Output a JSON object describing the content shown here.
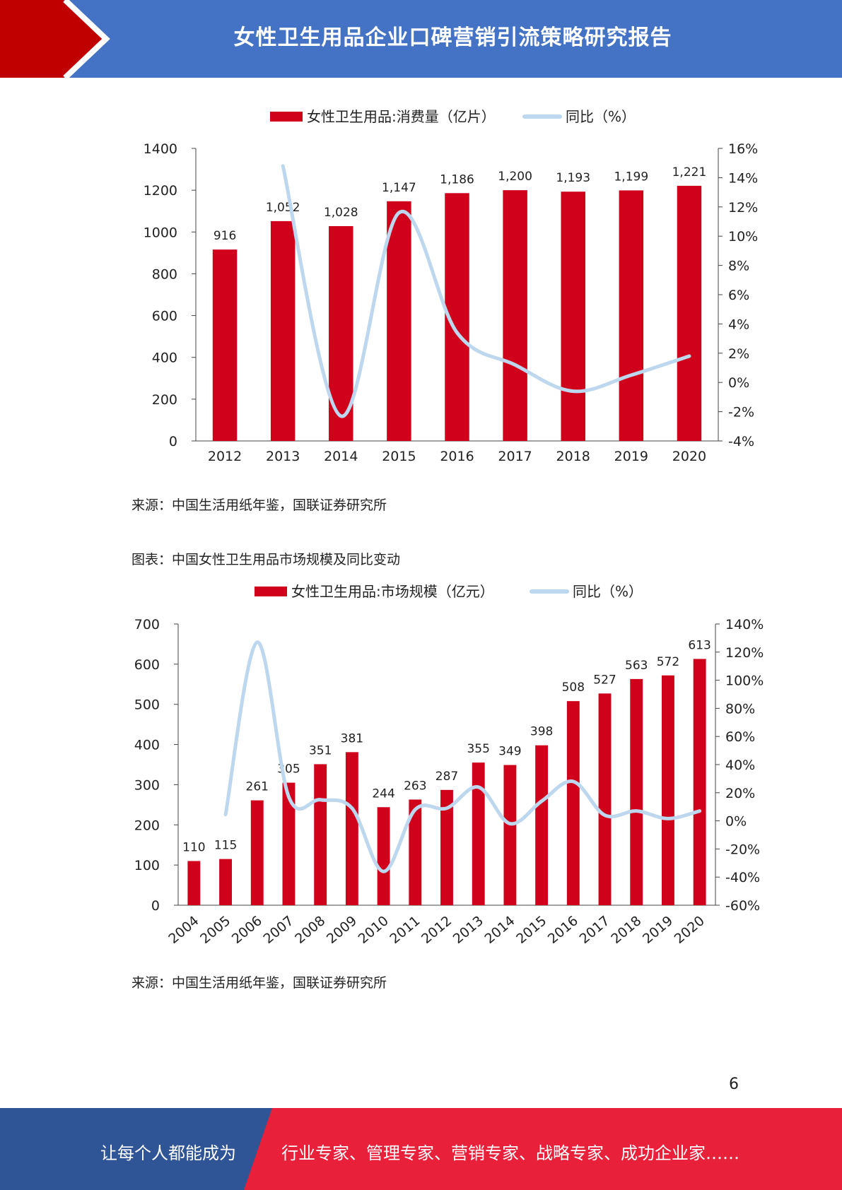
{
  "header": {
    "title": "女性卫生用品企业口碑营销引流策略研究报告"
  },
  "colors": {
    "header_blue": "#4472c4",
    "accent_red": "#c00000",
    "bar_red": "#d0021b",
    "line_blue": "#bdd7ee",
    "footer_blue": "#2f5597",
    "footer_red": "#e8203a"
  },
  "chart1_source": "来源：中国生活用纸年鉴，国联证券研究所",
  "chart2_caption": "图表：中国女性卫生用品市场规模及同比变动",
  "chart2_source": "来源：中国生活用纸年鉴，国联证券研究所",
  "page_number": "6",
  "footer": {
    "left_text": "让每个人都能成为",
    "right_text": "行业专家、管理专家、营销专家、战略专家、成功企业家……"
  },
  "chart_data": [
    {
      "type": "bar",
      "title": "",
      "categories": [
        "2012",
        "2013",
        "2014",
        "2015",
        "2016",
        "2017",
        "2018",
        "2019",
        "2020"
      ],
      "series": [
        {
          "name": "女性卫生用品:消费量（亿片）",
          "kind": "bar",
          "axis": "left",
          "values": [
            916,
            1052,
            1028,
            1147,
            1186,
            1200,
            1193,
            1199,
            1221
          ],
          "labels": [
            "916",
            "1,052",
            "1,028",
            "1,147",
            "1,186",
            "1,200",
            "1,193",
            "1,199",
            "1,221"
          ]
        },
        {
          "name": "同比（%）",
          "kind": "line",
          "axis": "right",
          "values": [
            null,
            14.8,
            -2.3,
            11.6,
            3.4,
            1.2,
            -0.6,
            0.5,
            1.8
          ]
        }
      ],
      "ylim": [
        0,
        1400
      ],
      "yticks": [
        0,
        200,
        400,
        600,
        800,
        1000,
        1200,
        1400
      ],
      "y2lim": [
        -4,
        16
      ],
      "y2ticks": [
        "-4%",
        "-2%",
        "0%",
        "2%",
        "4%",
        "6%",
        "8%",
        "10%",
        "12%",
        "14%",
        "16%"
      ],
      "legend": "top-center",
      "grid": false
    },
    {
      "type": "bar",
      "title": "",
      "categories": [
        "2004",
        "2005",
        "2006",
        "2007",
        "2008",
        "2009",
        "2010",
        "2011",
        "2012",
        "2013",
        "2014",
        "2015",
        "2016",
        "2017",
        "2018",
        "2019",
        "2020"
      ],
      "series": [
        {
          "name": "女性卫生用品:市场规模（亿元）",
          "kind": "bar",
          "axis": "left",
          "values": [
            110,
            115,
            261,
            305,
            351,
            381,
            244,
            263,
            287,
            355,
            349,
            398,
            508,
            527,
            563,
            572,
            613
          ],
          "labels": [
            "110",
            "115",
            "261",
            "305",
            "351",
            "381",
            "244",
            "263",
            "287",
            "355",
            "349",
            "398",
            "508",
            "527",
            "563",
            "572",
            "613"
          ]
        },
        {
          "name": "同比（%）",
          "kind": "line",
          "axis": "right",
          "values": [
            null,
            4.5,
            127,
            17,
            15,
            9,
            -36,
            8,
            9,
            24,
            -2,
            14,
            28,
            4,
            7,
            1.6,
            7
          ]
        }
      ],
      "ylim": [
        0,
        700
      ],
      "yticks": [
        0,
        100,
        200,
        300,
        400,
        500,
        600,
        700
      ],
      "y2lim": [
        -60,
        140
      ],
      "y2ticks": [
        "-60%",
        "-40%",
        "-20%",
        "0%",
        "20%",
        "40%",
        "60%",
        "80%",
        "100%",
        "120%",
        "140%"
      ],
      "legend": "top-center",
      "grid": false
    }
  ]
}
